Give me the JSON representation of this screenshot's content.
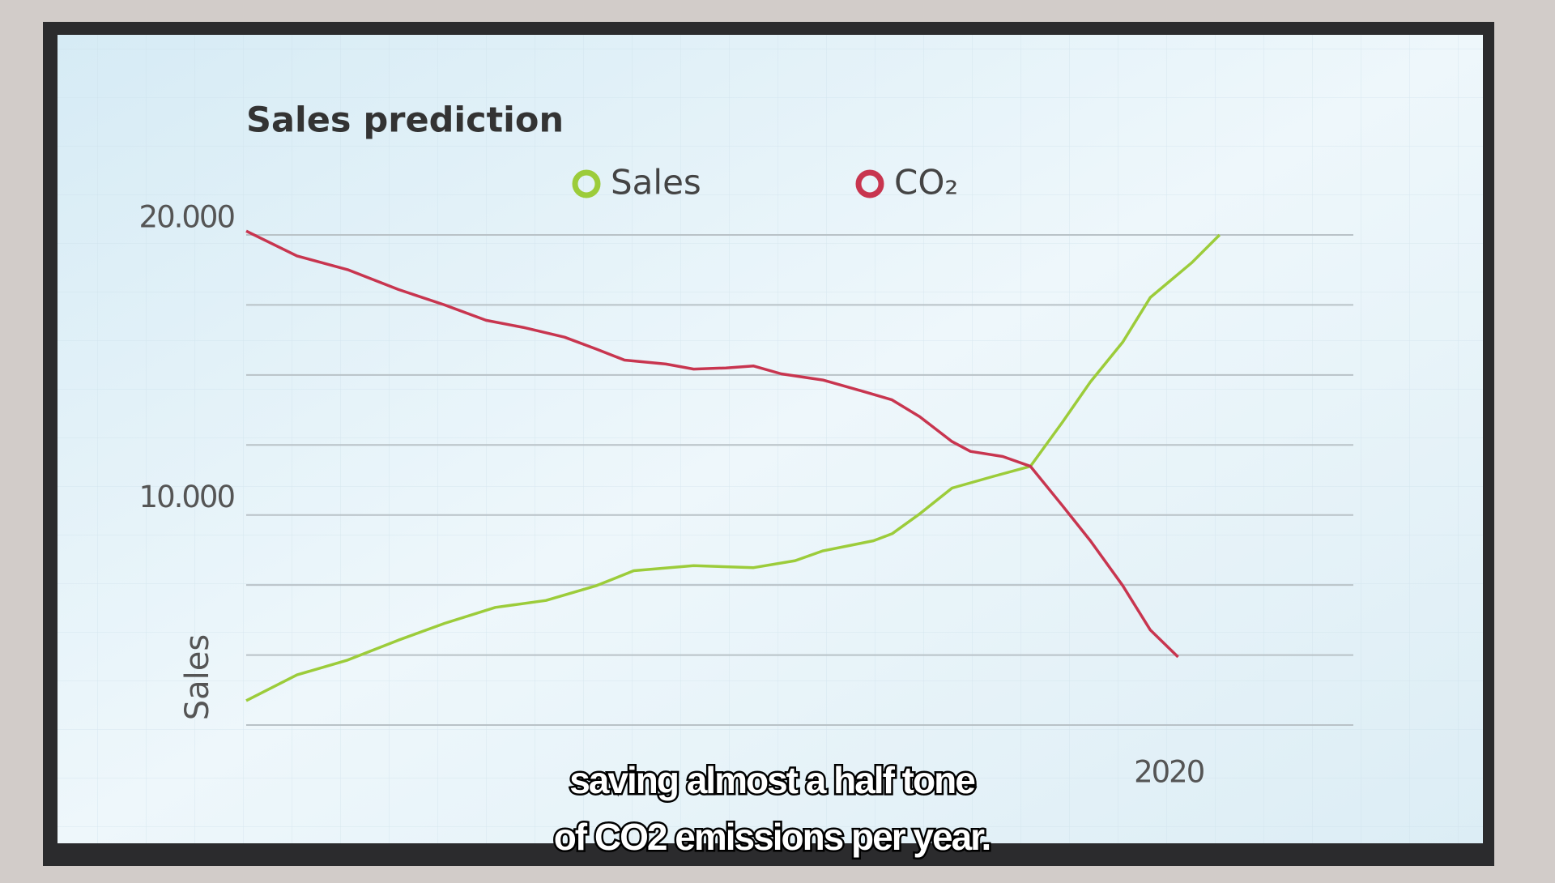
{
  "chart_data": {
    "type": "line",
    "title": "Sales prediction",
    "ylabel": "Sales",
    "xlim": [
      2000,
      2024
    ],
    "xticks": [
      2020
    ],
    "ylim": [
      2500,
      20000
    ],
    "yticks": [
      {
        "value": 10000,
        "label": "10.000"
      },
      {
        "value": 20000,
        "label": "20.000"
      }
    ],
    "ygrid": [
      2500,
      5000,
      7500,
      10000,
      12500,
      15000,
      17500,
      20000
    ],
    "series": [
      {
        "name": "Sales",
        "color": "#9ccc3a",
        "x": [
          2000.0,
          2001.1,
          2002.2,
          2003.3,
          2004.3,
          2005.4,
          2006.5,
          2007.6,
          2008.4,
          2009.7,
          2011.0,
          2011.9,
          2012.5,
          2013.6,
          2014.0,
          2014.6,
          2015.3,
          2016.2,
          2017.0,
          2017.7,
          2018.3,
          2019.0,
          2019.6,
          2020.5,
          2021.1
        ],
        "values": [
          3370,
          4290,
          4820,
          5530,
          6130,
          6700,
          6950,
          7480,
          8010,
          8190,
          8120,
          8370,
          8720,
          9080,
          9330,
          10040,
          10960,
          11380,
          11740,
          13330,
          14750,
          16170,
          17770,
          19010,
          20000
        ]
      },
      {
        "name": "CO₂",
        "color": "#c8354f",
        "x": [
          2000.0,
          2001.1,
          2002.2,
          2003.3,
          2004.3,
          2005.2,
          2006.0,
          2006.9,
          2007.6,
          2008.2,
          2009.1,
          2009.7,
          2010.4,
          2011.0,
          2011.6,
          2012.5,
          2013.4,
          2014.0,
          2014.6,
          2015.3,
          2015.7,
          2016.4,
          2017.0,
          2017.7,
          2018.3,
          2019.0,
          2019.6,
          2020.2
        ],
        "values": [
          20140,
          19250,
          18760,
          18050,
          17500,
          16950,
          16700,
          16350,
          15920,
          15530,
          15390,
          15210,
          15250,
          15320,
          15040,
          14820,
          14400,
          14110,
          13510,
          12620,
          12270,
          12090,
          11740,
          10320,
          9080,
          7480,
          5890,
          4930
        ]
      }
    ]
  },
  "subtitle_lines": [
    "saving almost a half tone",
    "of CO2 emissions per year."
  ]
}
